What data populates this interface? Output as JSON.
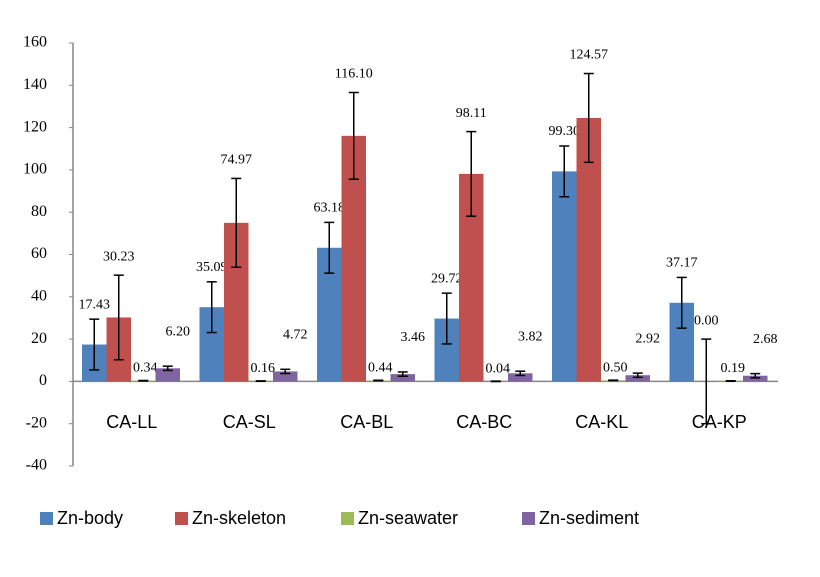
{
  "chart_data": {
    "type": "bar",
    "categories": [
      "CA-LL",
      "CA-SL",
      "CA-BL",
      "CA-BC",
      "CA-KL",
      "CA-KP"
    ],
    "series": [
      {
        "name": "Zn-body",
        "color": "#4f81bd",
        "values": [
          17.43,
          35.09,
          63.18,
          29.72,
          99.3,
          37.17
        ],
        "value_labels": [
          "17.43",
          "35.09",
          "63.18",
          "29.72",
          "99.30",
          "37.17"
        ],
        "errors": [
          12,
          12,
          12,
          12,
          12,
          12
        ]
      },
      {
        "name": "Zn-skeleton",
        "color": "#c0504d",
        "values": [
          30.23,
          74.97,
          116.1,
          98.11,
          124.57,
          0
        ],
        "value_labels": [
          "30.23",
          "74.97",
          "116.10",
          "98.11",
          "124.57",
          "0.00"
        ],
        "errors": [
          20,
          21,
          20.5,
          20,
          21,
          20
        ]
      },
      {
        "name": "Zn-seawater",
        "color": "#9bbb59",
        "values": [
          0.34,
          0.16,
          0.44,
          0.04,
          0.5,
          0.19
        ],
        "value_labels": [
          "0.34",
          "0.16",
          "0.44",
          "0.04",
          "0.50",
          "0.19"
        ],
        "errors": [
          0.1,
          0.1,
          0.1,
          0.1,
          0.1,
          0.1
        ]
      },
      {
        "name": "Zn-sediment",
        "color": "#8064a2",
        "values": [
          6.2,
          4.72,
          3.46,
          3.82,
          2.92,
          2.68
        ],
        "value_labels": [
          "6.20",
          "4.72",
          "3.46",
          "3.82",
          "2.92",
          "2.68"
        ],
        "errors": [
          1,
          1,
          1,
          1,
          1,
          1
        ]
      }
    ],
    "ylim": [
      -40,
      160
    ],
    "yticks": [
      -40,
      -20,
      0,
      20,
      40,
      60,
      80,
      100,
      120,
      140,
      160
    ],
    "grid": false,
    "legend": "bottom"
  }
}
